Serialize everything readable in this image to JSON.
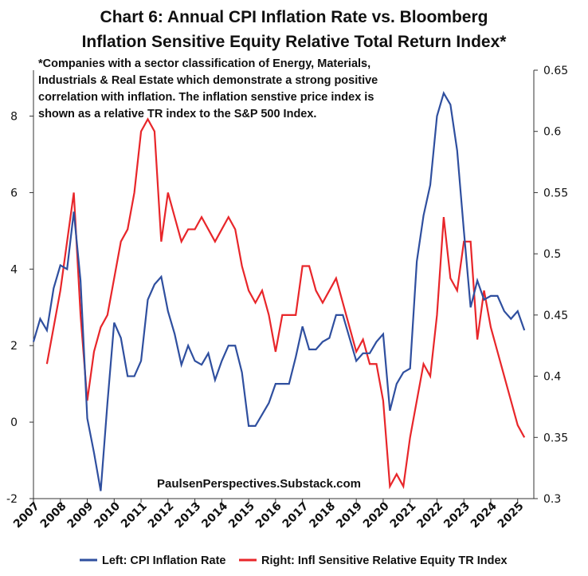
{
  "chart_data": {
    "type": "line",
    "title": [
      "Chart 6: Annual CPI Inflation Rate vs. Bloomberg",
      "Inflation Sensitive Equity Relative Total Return Index*"
    ],
    "note": [
      "*Companies with a sector classification of Energy, Materials,",
      "Industrials & Real Estate which demonstrate a strong positive",
      "correlation with inflation.   The inflation senstive price index is",
      "shown as a relative TR index to the S&P 500 Index."
    ],
    "watermark": "PaulsenPerspectives.Substack.com",
    "x": [
      2007,
      2007.25,
      2007.5,
      2007.75,
      2008,
      2008.25,
      2008.5,
      2008.75,
      2009,
      2009.25,
      2009.5,
      2009.75,
      2010,
      2010.25,
      2010.5,
      2010.75,
      2011,
      2011.25,
      2011.5,
      2011.75,
      2012,
      2012.25,
      2012.5,
      2012.75,
      2013,
      2013.25,
      2013.5,
      2013.75,
      2014,
      2014.25,
      2014.5,
      2014.75,
      2015,
      2015.25,
      2015.5,
      2015.75,
      2016,
      2016.25,
      2016.5,
      2016.75,
      2017,
      2017.25,
      2017.5,
      2017.75,
      2018,
      2018.25,
      2018.5,
      2018.75,
      2019,
      2019.25,
      2019.5,
      2019.75,
      2020,
      2020.25,
      2020.5,
      2020.75,
      2021,
      2021.25,
      2021.5,
      2021.75,
      2022,
      2022.25,
      2022.5,
      2022.75,
      2023,
      2023.25,
      2023.5,
      2023.75,
      2024,
      2024.25,
      2024.5,
      2024.75,
      2025,
      2025.25
    ],
    "xlim": [
      2007,
      2025.6
    ],
    "xticks": [
      2007,
      2008,
      2009,
      2010,
      2011,
      2012,
      2013,
      2014,
      2015,
      2016,
      2017,
      2018,
      2019,
      2020,
      2021,
      2022,
      2023,
      2024,
      2025
    ],
    "ylim": [
      -2,
      9.2
    ],
    "yticks": [
      -2,
      0,
      2,
      4,
      6,
      8
    ],
    "y2lim": [
      0.3,
      0.65
    ],
    "y2ticks": [
      0.3,
      0.35,
      0.4,
      0.45,
      0.5,
      0.55,
      0.6,
      0.65
    ],
    "series": [
      {
        "name": "Left: CPI Inflation Rate",
        "color": "#2f4f9f",
        "axis": "y",
        "values": [
          2.1,
          2.7,
          2.4,
          3.5,
          4.1,
          4.0,
          5.5,
          3.7,
          0.1,
          -0.8,
          -1.8,
          0.5,
          2.6,
          2.2,
          1.2,
          1.2,
          1.6,
          3.2,
          3.6,
          3.8,
          2.9,
          2.3,
          1.5,
          2.0,
          1.6,
          1.5,
          1.8,
          1.1,
          1.6,
          2.0,
          2.0,
          1.3,
          -0.1,
          -0.1,
          0.2,
          0.5,
          1.0,
          1.0,
          1.0,
          1.7,
          2.5,
          1.9,
          1.9,
          2.1,
          2.2,
          2.8,
          2.8,
          2.2,
          1.6,
          1.8,
          1.8,
          2.1,
          2.3,
          0.3,
          1.0,
          1.3,
          1.4,
          4.2,
          5.4,
          6.2,
          8.0,
          8.6,
          8.3,
          7.1,
          5.0,
          3.0,
          3.7,
          3.2,
          3.3,
          3.3,
          2.9,
          2.7,
          2.9,
          2.4
        ]
      },
      {
        "name": "Right: Infl Sensitive Relative Equity TR Index",
        "color": "#e8262a",
        "axis": "y2",
        "values": [
          null,
          null,
          0.41,
          0.44,
          0.47,
          0.51,
          0.55,
          0.45,
          0.38,
          0.42,
          0.44,
          0.45,
          0.48,
          0.51,
          0.52,
          0.55,
          0.6,
          0.61,
          0.6,
          0.51,
          0.55,
          0.53,
          0.51,
          0.52,
          0.52,
          0.53,
          0.52,
          0.51,
          0.52,
          0.53,
          0.52,
          0.49,
          0.47,
          0.46,
          0.47,
          0.45,
          0.42,
          0.45,
          0.45,
          0.45,
          0.49,
          0.49,
          0.47,
          0.46,
          0.47,
          0.48,
          0.46,
          0.44,
          0.42,
          0.43,
          0.41,
          0.41,
          0.38,
          0.31,
          0.32,
          0.31,
          0.35,
          0.38,
          0.41,
          0.4,
          0.45,
          0.53,
          0.48,
          0.47,
          0.51,
          0.51,
          0.43,
          0.47,
          0.44,
          0.42,
          0.4,
          0.38,
          0.36,
          0.35
        ]
      }
    ]
  }
}
